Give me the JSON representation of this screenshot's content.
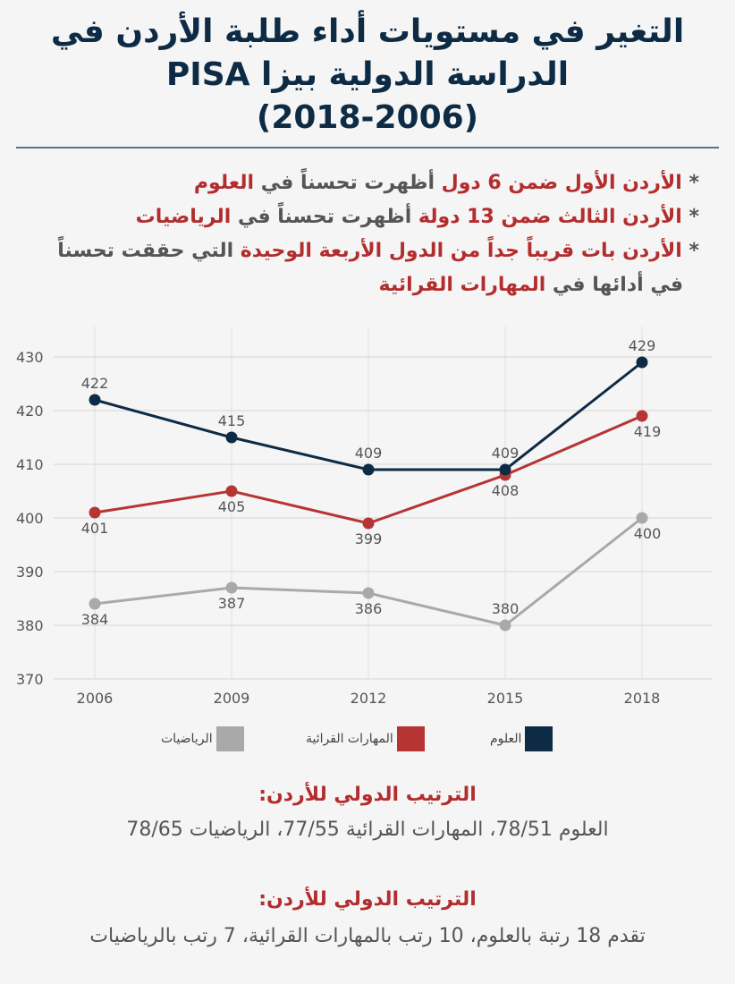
{
  "header": {
    "title_line1": "التغير في مستويات أداء طلبة الأردن في",
    "title_line2": "الدراسة الدولية بيزا PISA",
    "title_line3": "(2018-2006)"
  },
  "bullets": [
    {
      "star": "*",
      "p1": "الأردن الأول ضمن 6 دول",
      "p2": " أظهرت تحسناً في ",
      "p3": "العلوم"
    },
    {
      "star": "*",
      "p1": "الأردن الثالث ضمن 13 دولة",
      "p2": " أظهرت تحسناً في ",
      "p3": "الرياضيات"
    },
    {
      "star": "*",
      "p1": "الأردن بات قريباً جداً من الدول الأربعة الوحيدة",
      "p2": " التي حققت تحسناً",
      "p3": ""
    },
    {
      "star": "",
      "p1": "",
      "p2": "في أدائها في ",
      "p3": "المهارات القرائية"
    }
  ],
  "colors": {
    "science": "#0d2b45",
    "reading": "#b73434",
    "math": "#a9a9a9",
    "accent_red": "#b32d2e",
    "grid": "#e0e0e0",
    "label": "#555555"
  },
  "chart_data": {
    "type": "line",
    "title": "",
    "xlabel": "",
    "ylabel": "",
    "x": [
      "2006",
      "2009",
      "2012",
      "2015",
      "2018"
    ],
    "ylim": [
      370,
      430
    ],
    "yticks": [
      370,
      380,
      390,
      400,
      410,
      420,
      430
    ],
    "grid": true,
    "legend_position": "bottom",
    "series": [
      {
        "key": "science",
        "name": "العلوم",
        "values": [
          422,
          415,
          409,
          409,
          429
        ],
        "label_pos": [
          "above",
          "above",
          "above",
          "above",
          "above"
        ]
      },
      {
        "key": "reading",
        "name": "المهارات القرائية",
        "values": [
          401,
          405,
          399,
          408,
          419
        ],
        "label_pos": [
          "below",
          "below",
          "below",
          "below",
          "below"
        ]
      },
      {
        "key": "math",
        "name": "الرياضيات",
        "values": [
          384,
          387,
          386,
          380,
          400
        ],
        "label_pos": [
          "below",
          "below",
          "below",
          "above",
          "below"
        ]
      }
    ]
  },
  "ranking1": {
    "heading": "الترتيب الدولي للأردن:",
    "text": "العلوم 78/51، المهارات القرائية 77/55،  الرياضيات 78/65"
  },
  "ranking2": {
    "heading": "الترتيب الدولي للأردن:",
    "text": "تقدم 18 رتبة بالعلوم، 10 رتب بالمهارات القرائية، 7 رتب بالرياضيات"
  }
}
